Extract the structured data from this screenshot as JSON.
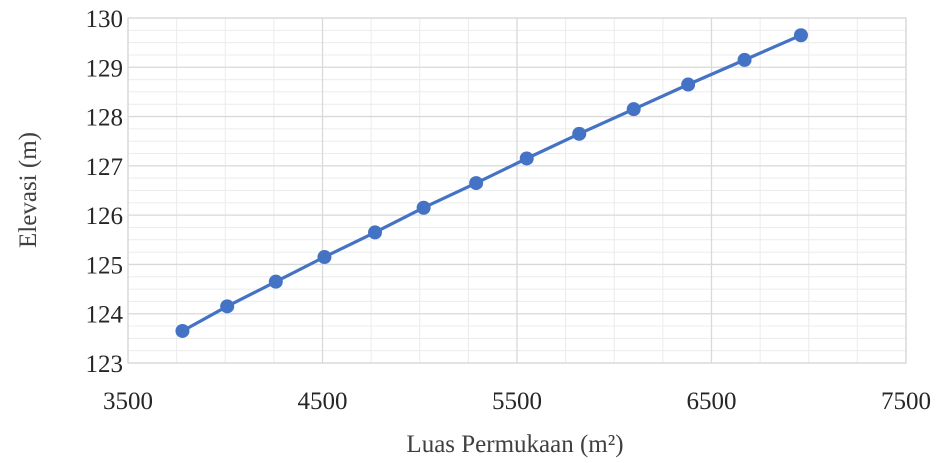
{
  "chart_data": {
    "type": "line",
    "title": "",
    "xlabel": "Luas Permukaan (m²)",
    "ylabel": "Elevasi (m)",
    "xlim": [
      3500,
      7500
    ],
    "ylim": [
      123,
      130
    ],
    "x_ticks": [
      3500,
      4500,
      5500,
      6500,
      7500
    ],
    "y_ticks": [
      123,
      124,
      125,
      126,
      127,
      128,
      129,
      130
    ],
    "x_minor_step": 250,
    "y_minor_step": 0.25,
    "grid": true,
    "legend": "none",
    "markers": true,
    "colors": {
      "series": "#4472c4",
      "major_grid": "#d9d9d9",
      "minor_grid": "#ececec"
    },
    "series": [
      {
        "x": [
          3780,
          4010,
          4260,
          4510,
          4770,
          5020,
          5290,
          5550,
          5820,
          6100,
          6380,
          6670,
          6960
        ],
        "y": [
          123.65,
          124.15,
          124.65,
          125.15,
          125.65,
          126.15,
          126.65,
          127.15,
          127.65,
          128.15,
          128.65,
          129.15,
          129.65
        ]
      }
    ]
  }
}
